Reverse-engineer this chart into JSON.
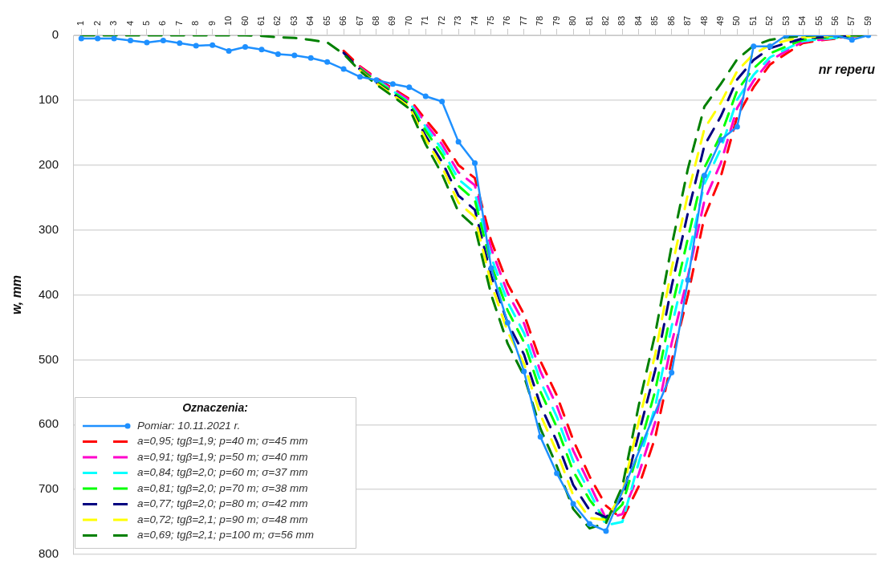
{
  "chart_data": {
    "type": "line",
    "xlabel": "nr reperu",
    "ylabel": "w, mm",
    "legend_title": "Oznaczenia:",
    "legend": "bottom left",
    "grid": "y",
    "categories": [
      "1",
      "2",
      "3",
      "4",
      "5",
      "6",
      "7",
      "8",
      "9",
      "10",
      "60",
      "61",
      "62",
      "63",
      "64",
      "65",
      "66",
      "67",
      "68",
      "69",
      "70",
      "71",
      "72",
      "73",
      "74",
      "75",
      "76",
      "77",
      "78",
      "79",
      "80",
      "81",
      "82",
      "83",
      "84",
      "85",
      "86",
      "87",
      "48",
      "49",
      "50",
      "51",
      "52",
      "53",
      "54",
      "55",
      "56",
      "57",
      "59"
    ],
    "ylim": [
      800,
      0
    ],
    "yticks": [
      0,
      100,
      200,
      300,
      400,
      500,
      600,
      700,
      800
    ],
    "series": [
      {
        "name": "Pomiar: 10.11.2021 r.",
        "color": "#1e90ff",
        "marker": "circle",
        "line_style": "solid",
        "values": [
          5,
          5,
          5,
          8,
          11,
          8,
          12,
          16,
          15,
          24,
          18,
          22,
          29,
          31,
          35,
          41,
          52,
          64,
          69,
          75,
          80,
          94,
          102,
          164,
          197,
          359,
          443,
          518,
          619,
          675,
          722,
          753,
          764,
          null,
          null,
          null,
          520,
          377,
          216,
          161,
          141,
          17,
          17,
          0,
          null,
          null,
          0,
          7,
          0
        ]
      },
      {
        "name": "a=0,95; tgβ=1,9; p=40 m; σ=45 mm",
        "color": "#ff0000",
        "marker": "none",
        "line_style": "dashed",
        "values": [
          null,
          null,
          null,
          null,
          null,
          null,
          null,
          null,
          null,
          null,
          null,
          null,
          null,
          null,
          null,
          null,
          24,
          48,
          66,
          82,
          98,
          130,
          160,
          200,
          220,
          317,
          383,
          430,
          502,
          555,
          624,
          680,
          725,
          746,
          695,
          620,
          502,
          400,
          280,
          218,
          125,
          80,
          45,
          28,
          12,
          8,
          5,
          2,
          0
        ]
      },
      {
        "name": "a=0,91; tgβ=1,9; p=50 m; σ=40 mm",
        "color": "#ff00cc",
        "marker": "none",
        "line_style": "dashed",
        "values": [
          null,
          null,
          null,
          null,
          null,
          null,
          null,
          null,
          null,
          null,
          null,
          null,
          null,
          null,
          null,
          null,
          null,
          49,
          68,
          84,
          100,
          136,
          168,
          211,
          231,
          329,
          397,
          444,
          518,
          571,
          640,
          692,
          745,
          738,
          676,
          596,
          475,
          371,
          255,
          197,
          112,
          70,
          39,
          24,
          10,
          7,
          4,
          2,
          0
        ]
      },
      {
        "name": "a=0,84; tgβ=2,0; p=60 m; σ=37 mm",
        "color": "#00ffff",
        "marker": "none",
        "line_style": "dashed",
        "values": [
          null,
          null,
          null,
          null,
          null,
          null,
          null,
          null,
          null,
          null,
          null,
          null,
          null,
          null,
          null,
          null,
          null,
          null,
          69,
          86,
          103,
          141,
          176,
          222,
          243,
          342,
          411,
          459,
          533,
          588,
          656,
          704,
          755,
          750,
          658,
          572,
          449,
          342,
          229,
          175,
          99,
          61,
          34,
          21,
          9,
          6,
          4,
          1,
          0
        ]
      },
      {
        "name": "a=0,81; tgβ=2,0; p=70 m; σ=38 mm",
        "color": "#00ff00",
        "marker": "none",
        "line_style": "dashed",
        "values": [
          null,
          null,
          null,
          null,
          null,
          null,
          null,
          null,
          null,
          null,
          null,
          null,
          null,
          null,
          null,
          null,
          null,
          51,
          71,
          87,
          105,
          147,
          184,
          232,
          254,
          354,
          424,
          473,
          549,
          604,
          672,
          716,
          748,
          723,
          639,
          548,
          422,
          312,
          204,
          154,
          85,
          51,
          28,
          17,
          7,
          4,
          3,
          1,
          0
        ]
      },
      {
        "name": "a=0,77; tgβ=2,0; p=80 m; σ=42 mm",
        "color": "#000080",
        "marker": "none",
        "line_style": "dashed",
        "values": [
          null,
          null,
          null,
          null,
          null,
          null,
          null,
          null,
          null,
          null,
          null,
          null,
          null,
          null,
          null,
          null,
          27,
          53,
          73,
          90,
          108,
          155,
          195,
          247,
          269,
          371,
          443,
          492,
          570,
          626,
          693,
          732,
          743,
          713,
          614,
          516,
          387,
          273,
          170,
          125,
          68,
          38,
          20,
          12,
          5,
          3,
          2,
          1,
          0
        ]
      },
      {
        "name": "a=0,72; tgβ=2,1; p=90 m; σ=48 mm",
        "color": "#ffff00",
        "marker": "none",
        "line_style": "dashed",
        "values": [
          null,
          null,
          null,
          null,
          null,
          null,
          null,
          null,
          null,
          null,
          null,
          null,
          null,
          null,
          null,
          null,
          null,
          54,
          74,
          92,
          110,
          160,
          203,
          258,
          280,
          383,
          457,
          506,
          585,
          642,
          709,
          744,
          747,
          705,
          595,
          492,
          360,
          244,
          144,
          104,
          55,
          29,
          15,
          8,
          3,
          2,
          1,
          0,
          0
        ]
      },
      {
        "name": "a=0,69; tgβ=2,1; p=100 m; σ=56 mm",
        "color": "#008000",
        "marker": "none",
        "line_style": "dashed",
        "values": [
          0,
          0,
          0,
          0,
          0,
          0,
          0,
          0,
          0,
          0,
          0,
          1,
          3,
          4,
          7,
          11,
          29,
          55,
          76,
          94,
          113,
          168,
          214,
          272,
          295,
          400,
          475,
          525,
          606,
          664,
          730,
          760,
          752,
          695,
          570,
          460,
          325,
          205,
          110,
          75,
          37,
          16,
          7,
          3,
          1,
          0,
          0,
          0,
          0
        ]
      }
    ]
  }
}
